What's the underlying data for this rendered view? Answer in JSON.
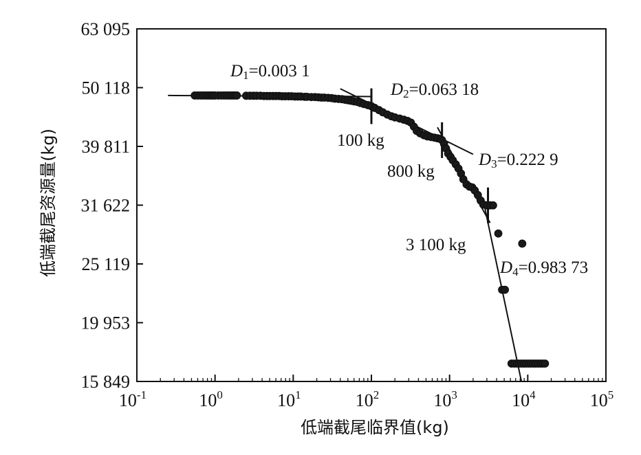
{
  "chart_data": {
    "type": "scatter",
    "title": "",
    "xlabel": "低端截尾临界值(kg)",
    "ylabel": "低端截尾资源量(kg)",
    "x_scale": "log",
    "y_scale": "log",
    "xlim": [
      0.1,
      100000
    ],
    "ylim": [
      15849,
      63095
    ],
    "grid": false,
    "x_ticks": [
      {
        "value": 0.1,
        "base": "10",
        "exp": "-1"
      },
      {
        "value": 1,
        "base": "10",
        "exp": "0"
      },
      {
        "value": 10,
        "base": "10",
        "exp": "1"
      },
      {
        "value": 100,
        "base": "10",
        "exp": "2"
      },
      {
        "value": 1000,
        "base": "10",
        "exp": "3"
      },
      {
        "value": 10000,
        "base": "10",
        "exp": "4"
      },
      {
        "value": 100000,
        "base": "10",
        "exp": "5"
      }
    ],
    "y_ticks": [
      {
        "value": 15849,
        "label": "15 849"
      },
      {
        "value": 19953,
        "label": "19 953"
      },
      {
        "value": 25119,
        "label": "25 119"
      },
      {
        "value": 31622,
        "label": "31 622"
      },
      {
        "value": 39811,
        "label": "39 811"
      },
      {
        "value": 50118,
        "label": "50 118"
      },
      {
        "value": 63095,
        "label": "63 095"
      }
    ],
    "series": [
      {
        "values": [
          {
            "x": 0.55,
            "y": 48600
          },
          {
            "x": 0.6,
            "y": 48600
          },
          {
            "x": 0.65,
            "y": 48600
          },
          {
            "x": 0.7,
            "y": 48600
          },
          {
            "x": 0.75,
            "y": 48600
          },
          {
            "x": 0.8,
            "y": 48600
          },
          {
            "x": 0.85,
            "y": 48600
          },
          {
            "x": 0.9,
            "y": 48600
          },
          {
            "x": 0.95,
            "y": 48600
          },
          {
            "x": 1.0,
            "y": 48600
          },
          {
            "x": 1.1,
            "y": 48600
          },
          {
            "x": 1.2,
            "y": 48600
          },
          {
            "x": 1.3,
            "y": 48600
          },
          {
            "x": 1.4,
            "y": 48600
          },
          {
            "x": 1.5,
            "y": 48600
          },
          {
            "x": 1.6,
            "y": 48600
          },
          {
            "x": 1.7,
            "y": 48600
          },
          {
            "x": 1.8,
            "y": 48600
          },
          {
            "x": 1.9,
            "y": 48600
          },
          {
            "x": 2.5,
            "y": 48550
          },
          {
            "x": 2.8,
            "y": 48550
          },
          {
            "x": 3.1,
            "y": 48550
          },
          {
            "x": 3.4,
            "y": 48550
          },
          {
            "x": 3.8,
            "y": 48550
          },
          {
            "x": 4.2,
            "y": 48500
          },
          {
            "x": 4.6,
            "y": 48500
          },
          {
            "x": 5.0,
            "y": 48500
          },
          {
            "x": 5.5,
            "y": 48500
          },
          {
            "x": 6.0,
            "y": 48500
          },
          {
            "x": 6.6,
            "y": 48500
          },
          {
            "x": 7.2,
            "y": 48450
          },
          {
            "x": 7.9,
            "y": 48450
          },
          {
            "x": 8.7,
            "y": 48450
          },
          {
            "x": 9.5,
            "y": 48450
          },
          {
            "x": 10.5,
            "y": 48400
          },
          {
            "x": 11.5,
            "y": 48400
          },
          {
            "x": 12.5,
            "y": 48400
          },
          {
            "x": 14,
            "y": 48350
          },
          {
            "x": 15,
            "y": 48350
          },
          {
            "x": 17,
            "y": 48300
          },
          {
            "x": 19,
            "y": 48300
          },
          {
            "x": 21,
            "y": 48250
          },
          {
            "x": 23,
            "y": 48200
          },
          {
            "x": 25,
            "y": 48200
          },
          {
            "x": 28,
            "y": 48150
          },
          {
            "x": 31,
            "y": 48100
          },
          {
            "x": 34,
            "y": 48000
          },
          {
            "x": 38,
            "y": 47950
          },
          {
            "x": 42,
            "y": 47900
          },
          {
            "x": 46,
            "y": 47800
          },
          {
            "x": 50,
            "y": 47700
          },
          {
            "x": 55,
            "y": 47600
          },
          {
            "x": 60,
            "y": 47500
          },
          {
            "x": 66,
            "y": 47400
          },
          {
            "x": 72,
            "y": 47200
          },
          {
            "x": 80,
            "y": 47000
          },
          {
            "x": 90,
            "y": 46800
          },
          {
            "x": 100,
            "y": 46600
          },
          {
            "x": 110,
            "y": 46300
          },
          {
            "x": 125,
            "y": 45900
          },
          {
            "x": 140,
            "y": 45500
          },
          {
            "x": 160,
            "y": 45100
          },
          {
            "x": 180,
            "y": 44800
          },
          {
            "x": 200,
            "y": 44600
          },
          {
            "x": 230,
            "y": 44400
          },
          {
            "x": 260,
            "y": 44200
          },
          {
            "x": 290,
            "y": 44000
          },
          {
            "x": 320,
            "y": 43700
          },
          {
            "x": 350,
            "y": 43000
          },
          {
            "x": 380,
            "y": 42300
          },
          {
            "x": 420,
            "y": 41900
          },
          {
            "x": 470,
            "y": 41600
          },
          {
            "x": 520,
            "y": 41400
          },
          {
            "x": 580,
            "y": 41300
          },
          {
            "x": 640,
            "y": 41200
          },
          {
            "x": 700,
            "y": 41100
          },
          {
            "x": 760,
            "y": 41000
          },
          {
            "x": 800,
            "y": 40800
          },
          {
            "x": 850,
            "y": 40200
          },
          {
            "x": 900,
            "y": 39500
          },
          {
            "x": 960,
            "y": 38700
          },
          {
            "x": 1030,
            "y": 38200
          },
          {
            "x": 1100,
            "y": 37700
          },
          {
            "x": 1200,
            "y": 37100
          },
          {
            "x": 1300,
            "y": 36500
          },
          {
            "x": 1400,
            "y": 35800
          },
          {
            "x": 1500,
            "y": 35000
          },
          {
            "x": 1650,
            "y": 34300
          },
          {
            "x": 1800,
            "y": 34000
          },
          {
            "x": 1950,
            "y": 33900
          },
          {
            "x": 2100,
            "y": 33500
          },
          {
            "x": 2300,
            "y": 32900
          },
          {
            "x": 2500,
            "y": 32200
          },
          {
            "x": 2700,
            "y": 31700
          },
          {
            "x": 3000,
            "y": 31600
          },
          {
            "x": 3300,
            "y": 31600
          },
          {
            "x": 3600,
            "y": 31600
          },
          {
            "x": 4200,
            "y": 28300
          },
          {
            "x": 4700,
            "y": 22700
          },
          {
            "x": 5100,
            "y": 22700
          },
          {
            "x": 6200,
            "y": 17000
          },
          {
            "x": 6700,
            "y": 17000
          },
          {
            "x": 7200,
            "y": 17000
          },
          {
            "x": 7700,
            "y": 17000
          },
          {
            "x": 8300,
            "y": 17000
          },
          {
            "x": 8900,
            "y": 17000
          },
          {
            "x": 9500,
            "y": 17000
          },
          {
            "x": 10200,
            "y": 17000
          },
          {
            "x": 11000,
            "y": 17000
          },
          {
            "x": 11800,
            "y": 17000
          },
          {
            "x": 12600,
            "y": 17000
          },
          {
            "x": 13500,
            "y": 17000
          },
          {
            "x": 14500,
            "y": 17000
          },
          {
            "x": 15500,
            "y": 17000
          },
          {
            "x": 16600,
            "y": 17000
          },
          {
            "x": 8500,
            "y": 27200
          }
        ]
      }
    ],
    "fit_lines": [
      {
        "x": [
          0.25,
          100
        ],
        "y": [
          48600,
          48400
        ]
      },
      {
        "x": [
          40,
          2000
        ],
        "y": [
          49900,
          38600
        ]
      },
      {
        "x": [
          700,
          3300
        ],
        "y": [
          42900,
          29500
        ]
      },
      {
        "x": [
          2700,
          8300
        ],
        "y": [
          32200,
          15849
        ]
      }
    ],
    "breakpoints": [
      {
        "x": 100,
        "y": 46600
      },
      {
        "x": 800,
        "y": 40800
      },
      {
        "x": 3100,
        "y": 31600
      }
    ],
    "annotations": {
      "d1_label": "D",
      "d1_sub": "1",
      "d1_value": "=0.003 1",
      "d2_label": "D",
      "d2_sub": "2",
      "d2_value": "=0.063 18",
      "d3_label": "D",
      "d3_sub": "3",
      "d3_value": "=0.222 9",
      "d4_label": "D",
      "d4_sub": "4",
      "d4_value": "=0.983 73",
      "bp1": "100 kg",
      "bp2": "800 kg",
      "bp3": "3 100 kg"
    }
  }
}
